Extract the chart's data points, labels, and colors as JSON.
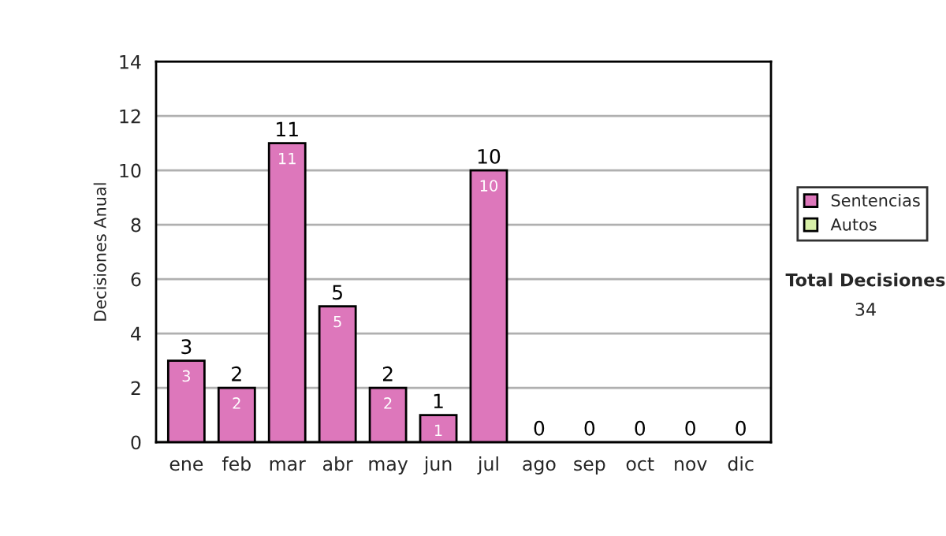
{
  "chart_data": {
    "type": "bar",
    "ylabel": "Decisiones Anual",
    "categories": [
      "ene",
      "feb",
      "mar",
      "abr",
      "may",
      "jun",
      "jul",
      "ago",
      "sep",
      "oct",
      "nov",
      "dic"
    ],
    "stacked": true,
    "series": [
      {
        "name": "Sentencias",
        "color": "#dd77bb",
        "values": [
          3,
          2,
          11,
          5,
          2,
          1,
          10,
          0,
          0,
          0,
          0,
          0
        ],
        "value_labels": [
          "3",
          "2",
          "11",
          "5",
          "2",
          "1",
          "10",
          null,
          null,
          null,
          null,
          null
        ]
      },
      {
        "name": "Autos",
        "color": "#d8f0a8",
        "values": [
          0,
          0,
          0,
          0,
          0,
          0,
          0,
          0,
          0,
          0,
          0,
          0
        ]
      }
    ],
    "totals": [
      "3",
      "2",
      "11",
      "5",
      "2",
      "1",
      "10",
      "0",
      "0",
      "0",
      "0",
      "0"
    ],
    "ylim": [
      0,
      14
    ],
    "yticks": [
      0,
      2,
      4,
      6,
      8,
      10,
      12,
      14
    ],
    "grid": "y",
    "legend": "right",
    "annotations": [
      "Total Decisiones",
      "34"
    ]
  }
}
